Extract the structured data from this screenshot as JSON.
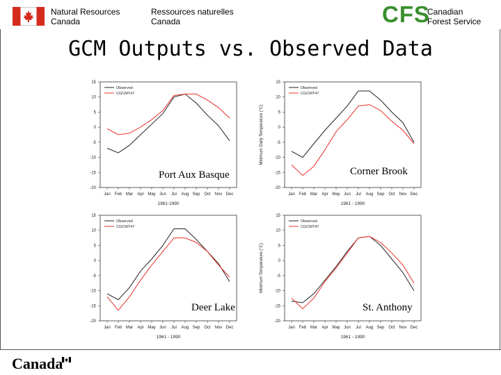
{
  "header": {
    "dept_en_line1": "Natural Resources",
    "dept_en_line2": "Canada",
    "dept_fr_line1": "Ressources naturelles",
    "dept_fr_line2": "Canada",
    "cfs_logo": "CFS",
    "service_line1": "Canadian",
    "service_line2": "Forest Service"
  },
  "title": "GCM Outputs vs. Observed Data",
  "footer": {
    "wordmark": "Canada"
  },
  "colors": {
    "observed": "#222222",
    "model": "#e8302a",
    "cfs_green": "#3a8f2e",
    "flag_red": "#d52b1e"
  },
  "icons": {
    "flag": "canada-flag-icon"
  },
  "chart_data": [
    {
      "type": "line",
      "site_label": "Port Aux Basque",
      "ylabel": "",
      "xlabel": "1961-1990",
      "ylim": [
        -20,
        15
      ],
      "yticks": [
        15,
        10,
        5,
        0,
        -5,
        -10,
        -15,
        -20
      ],
      "categories": [
        "Jan",
        "Feb",
        "Mar",
        "Apr",
        "May",
        "Jun",
        "Jul",
        "Aug",
        "Sep",
        "Oct",
        "Nov",
        "Dec"
      ],
      "legend": [
        "Observed",
        "CGCMT47"
      ],
      "series": [
        {
          "name": "Observed",
          "color": "#222222",
          "values": [
            -7,
            -8.5,
            -6,
            -2.5,
            1,
            4.5,
            10,
            11,
            8,
            4,
            0.5,
            -4.5
          ]
        },
        {
          "name": "CGCMT47",
          "color": "#e8302a",
          "values": [
            -0.5,
            -2.5,
            -2,
            0,
            2.5,
            5.5,
            10.5,
            11,
            11,
            9,
            6.5,
            3
          ]
        }
      ]
    },
    {
      "type": "line",
      "site_label": "Corner Brook",
      "ylabel": "Minimum Daily Temperature (°C)",
      "xlabel": "1961 - 1990",
      "ylim": [
        -20,
        15
      ],
      "yticks": [
        15,
        10,
        5,
        0,
        -5,
        -10,
        -15,
        -20
      ],
      "categories": [
        "Jan",
        "Feb",
        "Mar",
        "Apr",
        "May",
        "Jun",
        "Jul",
        "Aug",
        "Sep",
        "Oct",
        "Nov",
        "Dec"
      ],
      "legend": [
        "Observed",
        "CGCMT47"
      ],
      "series": [
        {
          "name": "Observed",
          "color": "#222222",
          "values": [
            -8,
            -10,
            -5.5,
            -1,
            3,
            7,
            12,
            12,
            9,
            5,
            1.5,
            -5
          ]
        },
        {
          "name": "CGCMT47",
          "color": "#e8302a",
          "values": [
            -12.5,
            -16,
            -13,
            -7.5,
            -1.5,
            2.5,
            7,
            7.5,
            5.5,
            2,
            -1,
            -5.5
          ]
        }
      ]
    },
    {
      "type": "line",
      "site_label": "Deer Lake",
      "ylabel": "",
      "xlabel": "1961 - 1990",
      "ylim": [
        -20,
        15
      ],
      "yticks": [
        15,
        10,
        5,
        0,
        -5,
        -10,
        -15,
        -20
      ],
      "categories": [
        "Jan",
        "Feb",
        "Mar",
        "Apr",
        "May",
        "Jun",
        "Jul",
        "Aug",
        "Sep",
        "Oct",
        "Nov",
        "Dec"
      ],
      "legend": [
        "Observed",
        "CGCMT47"
      ],
      "series": [
        {
          "name": "Observed",
          "color": "#222222",
          "values": [
            -11,
            -13,
            -9,
            -3.5,
            0.5,
            5,
            10.5,
            10.5,
            7,
            3,
            -1,
            -7
          ]
        },
        {
          "name": "CGCMT47",
          "color": "#e8302a",
          "values": [
            -12,
            -16.5,
            -12,
            -6.5,
            -1.5,
            3,
            7.5,
            7.5,
            6,
            3,
            -1.5,
            -5.5
          ]
        }
      ]
    },
    {
      "type": "line",
      "site_label": "St. Anthony",
      "ylabel": "Minimum Temperature (°C)",
      "xlabel": "1961 - 1990",
      "ylim": [
        -20,
        15
      ],
      "yticks": [
        15,
        10,
        5,
        0,
        -5,
        -10,
        -15,
        -20
      ],
      "categories": [
        "Jan",
        "Feb",
        "Mar",
        "Apr",
        "May",
        "Jun",
        "Jul",
        "Aug",
        "Sep",
        "Oct",
        "Nov",
        "Dec"
      ],
      "legend": [
        "Observed",
        "CGCMT47"
      ],
      "series": [
        {
          "name": "Observed",
          "color": "#222222",
          "values": [
            -13.5,
            -14,
            -11,
            -6.5,
            -2,
            3,
            7.5,
            8,
            5,
            0.5,
            -4,
            -10
          ]
        },
        {
          "name": "CGCMT47",
          "color": "#e8302a",
          "values": [
            -12.5,
            -16,
            -12.5,
            -7,
            -2.5,
            2.5,
            7.5,
            8,
            6,
            2.5,
            -1.5,
            -7.5
          ]
        }
      ]
    }
  ]
}
